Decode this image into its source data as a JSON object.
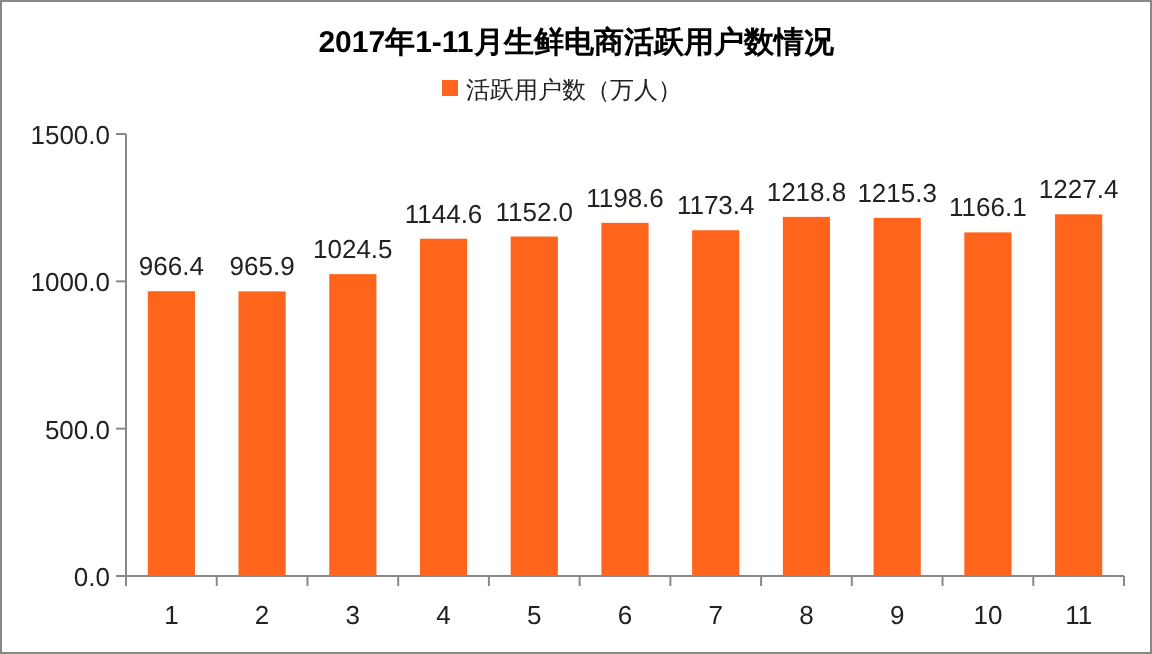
{
  "chart_data": {
    "type": "bar",
    "title": "2017年1-11月生鲜电商活跃用户数情况",
    "categories": [
      "1",
      "2",
      "3",
      "4",
      "5",
      "6",
      "7",
      "8",
      "9",
      "10",
      "11"
    ],
    "series": [
      {
        "name": "活跃用户数（万人）",
        "color": "#fe641b",
        "values": [
          966.4,
          965.9,
          1024.5,
          1144.6,
          1152.0,
          1198.6,
          1173.4,
          1218.8,
          1215.3,
          1166.1,
          1227.4
        ]
      }
    ],
    "value_labels": [
      "966.4",
      "965.9",
      "1024.5",
      "1144.6",
      "1152.0",
      "1198.6",
      "1173.4",
      "1218.8",
      "1215.3",
      "1166.1",
      "1227.4"
    ],
    "ylim": [
      0,
      1500
    ],
    "yticks": [
      {
        "value": 0,
        "label": "0.0"
      },
      {
        "value": 500,
        "label": "500.0"
      },
      {
        "value": 1000,
        "label": "1000.0"
      },
      {
        "value": 1500,
        "label": "1500.0"
      }
    ],
    "grid": false,
    "legend": "top"
  }
}
